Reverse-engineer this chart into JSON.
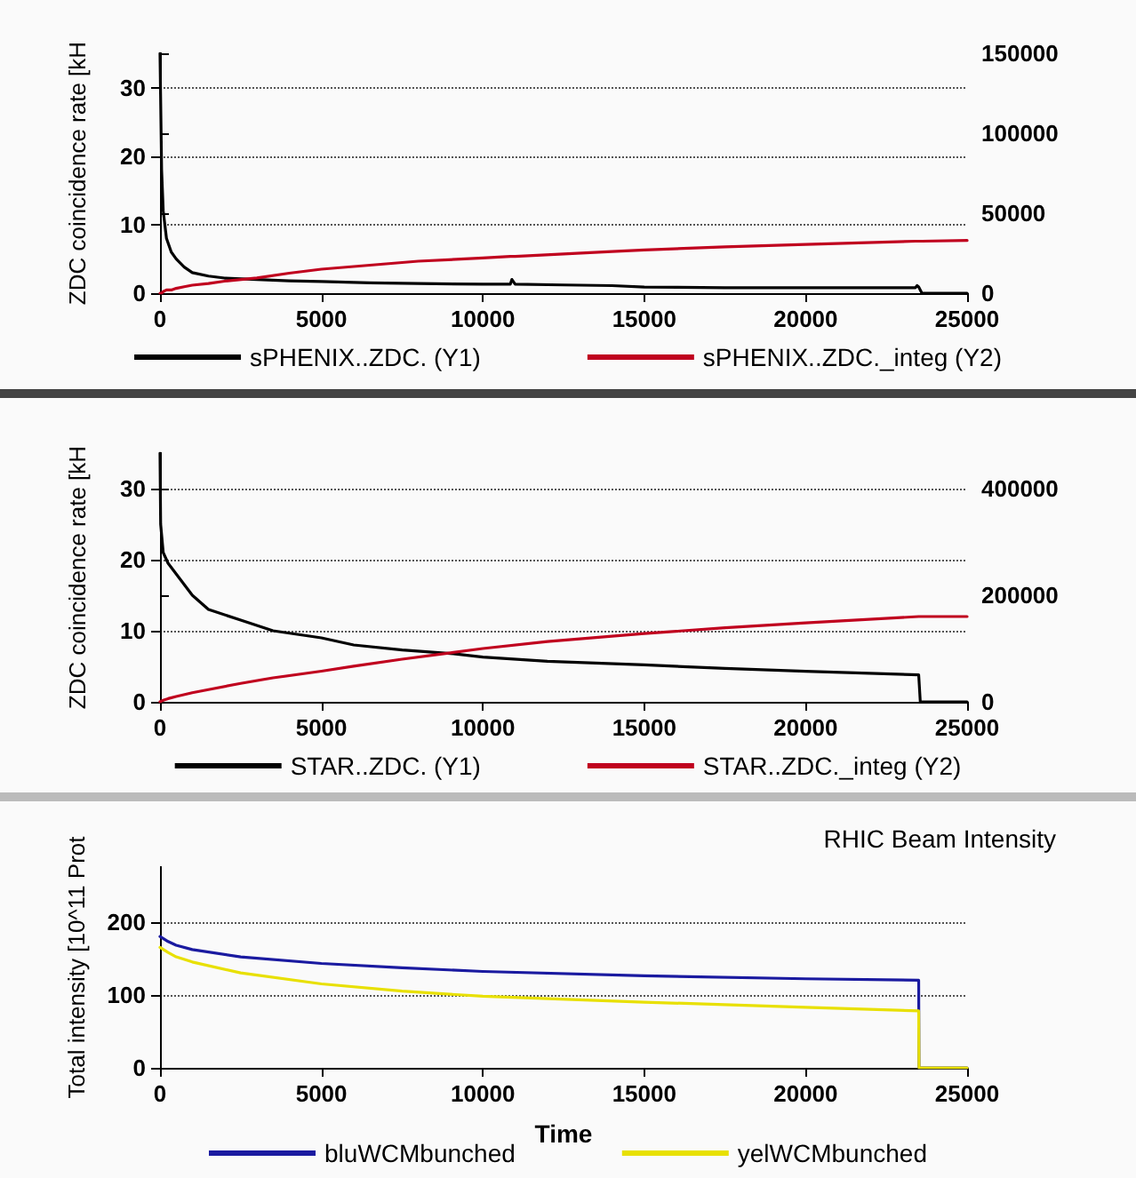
{
  "chart_data": [
    {
      "type": "line",
      "ylabel": "ZDC coincidence rate [kH",
      "x": [
        0,
        50,
        100,
        200,
        350,
        500,
        750,
        1000,
        1500,
        2000,
        3000,
        4000,
        5000,
        6500,
        8000,
        10000,
        10850,
        10900,
        11000,
        12500,
        14000,
        15000,
        17500,
        20000,
        23400,
        23450,
        23500,
        23600,
        25000
      ],
      "xlim": [
        0,
        25000
      ],
      "xticks": [
        0,
        5000,
        10000,
        15000,
        20000,
        25000
      ],
      "ylim": [
        0,
        35
      ],
      "yticks": [
        0,
        10,
        20,
        30
      ],
      "y2lim": [
        0,
        150000
      ],
      "y2ticks": [
        0,
        50000,
        100000,
        150000
      ],
      "grid": "y",
      "legend": "bottom",
      "line_style": "solid",
      "marker": "none",
      "series": [
        {
          "name": "sPHENIX..ZDC. (Y1)",
          "color": "#000000",
          "values": [
            35,
            18,
            12,
            8,
            6,
            5,
            3.8,
            3,
            2.5,
            2.2,
            2,
            1.8,
            1.7,
            1.5,
            1.4,
            1.3,
            1.3,
            2,
            1.3,
            1.2,
            1.1,
            0.9,
            0.8,
            0.8,
            0.8,
            1.1,
            0.9,
            0,
            0
          ]
        },
        {
          "name": "sPHENIX..ZDC._integ (Y2)",
          "color": "#c0001e",
          "axis": "y2",
          "values": [
            0,
            0,
            1000,
            2000,
            2000,
            3000,
            4000,
            5000,
            6000,
            7500,
            9500,
            12500,
            15000,
            17500,
            20000,
            22000,
            23000,
            23000,
            23000,
            24500,
            26000,
            27000,
            29000,
            30500,
            32500,
            32500,
            32500,
            32500,
            33000
          ]
        }
      ]
    },
    {
      "type": "line",
      "ylabel": "ZDC coincidence rate [kH",
      "x": [
        0,
        20,
        100,
        250,
        500,
        1000,
        1500,
        2500,
        3500,
        5000,
        6000,
        7500,
        9000,
        10000,
        12000,
        15000,
        17500,
        20000,
        23500,
        23550,
        25000
      ],
      "xlim": [
        0,
        25000
      ],
      "xticks": [
        0,
        5000,
        10000,
        15000,
        20000,
        25000
      ],
      "ylim": [
        0,
        35
      ],
      "yticks": [
        0,
        10,
        20,
        30
      ],
      "y2lim": [
        0,
        466667
      ],
      "y2ticks": [
        0,
        200000,
        400000
      ],
      "grid": "y",
      "legend": "bottom",
      "line_style": "solid",
      "marker": "none",
      "series": [
        {
          "name": "STAR..ZDC. (Y1)",
          "color": "#000000",
          "values": [
            35,
            25,
            21,
            19.5,
            18,
            15,
            13,
            11.5,
            10,
            9,
            8,
            7.3,
            6.8,
            6.3,
            5.7,
            5.2,
            4.7,
            4.3,
            3.8,
            0,
            0
          ]
        },
        {
          "name": "STAR..ZDC._integ (Y2)",
          "color": "#c0001e",
          "axis": "y2",
          "values": [
            0,
            0,
            3000,
            6000,
            10000,
            17000,
            23000,
            34500,
            45000,
            57500,
            67000,
            80000,
            92000,
            100000,
            113000,
            128000,
            139000,
            148000,
            160000,
            160000,
            160000
          ]
        }
      ]
    },
    {
      "type": "line",
      "title": "RHIC Beam Intensity",
      "xlabel": "Time",
      "ylabel": "Total intensity [10^11 Prot",
      "x": [
        0,
        250,
        500,
        1000,
        2500,
        5000,
        7500,
        10000,
        15000,
        20000,
        23500,
        23510,
        25000
      ],
      "xlim": [
        0,
        25000
      ],
      "xticks": [
        0,
        5000,
        10000,
        15000,
        20000,
        25000
      ],
      "ylim": [
        0,
        275
      ],
      "yticks": [
        0,
        100,
        200
      ],
      "grid": "y",
      "legend": "bottom",
      "line_style": "solid",
      "marker": "none",
      "series": [
        {
          "name": "bluWCMbunched",
          "color": "#1a1aa0",
          "values": [
            180,
            173,
            168,
            162,
            152,
            143,
            137,
            132,
            126,
            122,
            120,
            0,
            0
          ]
        },
        {
          "name": "yelWCMbunched",
          "color": "#e8e000",
          "values": [
            165,
            158,
            152,
            145,
            130,
            115,
            105,
            98,
            90,
            83,
            78,
            0,
            0
          ]
        }
      ]
    }
  ]
}
